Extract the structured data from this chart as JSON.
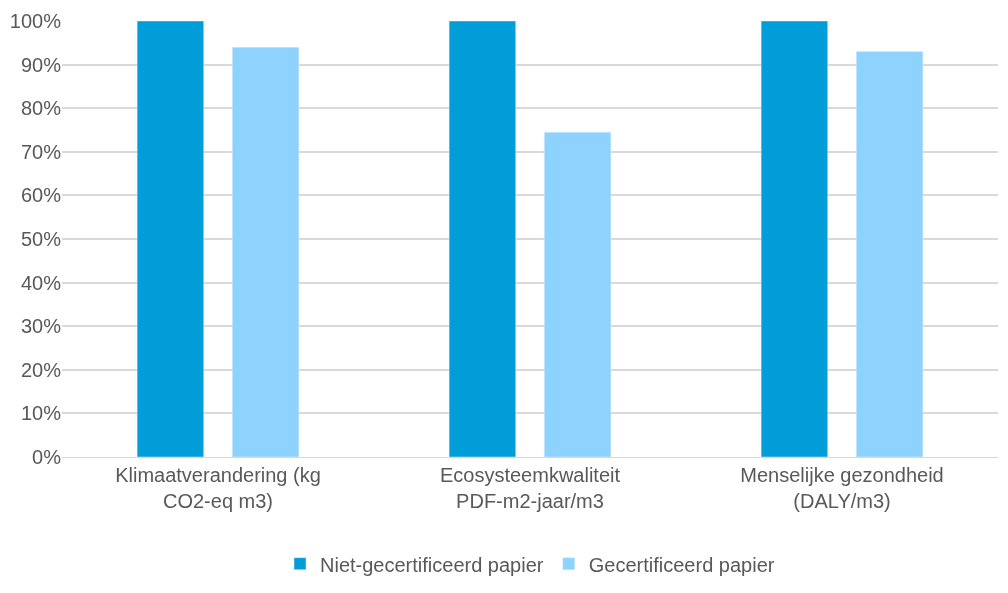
{
  "chart_data": {
    "type": "bar",
    "categories": [
      "Klimaatverandering (kg CO2-eq m3)",
      "Ecosysteemkwaliteit PDF-m2-jaar/m3",
      "Menselijke gezondheid (DALY/m3)"
    ],
    "series": [
      {
        "name": "Niet-gecertificeerd papier",
        "color": "#019dd9",
        "values": [
          100,
          100,
          100
        ]
      },
      {
        "name": "Gecertificeerd papier",
        "color": "#8ed2fe",
        "values": [
          94,
          74.5,
          93
        ]
      }
    ],
    "ylim": [
      0,
      100
    ],
    "yticks": [
      {
        "value": 0,
        "label": "0%"
      },
      {
        "value": 10,
        "label": "10%"
      },
      {
        "value": 20,
        "label": "20%"
      },
      {
        "value": 30,
        "label": "30%"
      },
      {
        "value": 40,
        "label": "40%"
      },
      {
        "value": 50,
        "label": "50%"
      },
      {
        "value": 60,
        "label": "60%"
      },
      {
        "value": 70,
        "label": "70%"
      },
      {
        "value": 80,
        "label": "80%"
      },
      {
        "value": 90,
        "label": "90%"
      },
      {
        "value": 100,
        "label": "100%"
      }
    ],
    "grid": "y",
    "legend": "bottom"
  }
}
